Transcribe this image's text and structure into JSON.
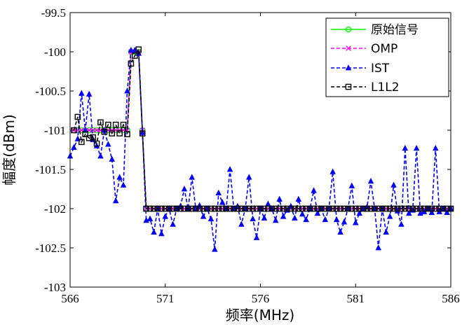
{
  "chart_data": {
    "type": "line",
    "title": "",
    "xlabel": "频率(MHz)",
    "ylabel": "幅度(dBm)",
    "xlim": [
      566,
      586
    ],
    "ylim": [
      -103,
      -99.5
    ],
    "xticks": [
      566,
      571,
      576,
      581,
      586
    ],
    "xtick_labels": [
      "566",
      "571",
      "576",
      "581",
      "586"
    ],
    "yticks": [
      -103,
      -102.5,
      -102,
      -101.5,
      -101,
      -100.5,
      -100,
      -99.5
    ],
    "ytick_labels": [
      "-103",
      "-102.5",
      "-102",
      "-101.5",
      "-101",
      "-100.5",
      "-100",
      "-99.5"
    ],
    "grid": false,
    "legend_position": "top-right",
    "series": [
      {
        "name": "原始信号",
        "color": "#00ff00",
        "marker": "circle",
        "dash": "solid",
        "x": [
          566.2,
          566.4,
          566.6,
          566.8,
          567.0,
          567.2,
          567.4,
          567.6,
          567.8,
          568.0,
          568.2,
          568.4,
          568.6,
          568.8,
          569.0,
          569.2,
          569.4,
          569.6,
          569.8,
          570.0,
          570.2,
          570.4,
          570.6,
          570.8,
          571.0,
          571.2,
          571.4,
          571.6,
          571.8,
          572.0,
          572.2,
          572.4,
          572.6,
          572.8,
          573.0,
          573.2,
          573.4,
          573.6,
          573.8,
          574.0,
          574.2,
          574.4,
          574.6,
          574.8,
          575.0,
          575.2,
          575.4,
          575.6,
          575.8,
          576.0,
          576.2,
          576.4,
          576.6,
          576.8,
          577.0,
          577.2,
          577.4,
          577.6,
          577.8,
          578.0,
          578.2,
          578.4,
          578.6,
          578.8,
          579.0,
          579.2,
          579.4,
          579.6,
          579.8,
          580.0,
          580.2,
          580.4,
          580.6,
          580.8,
          581.0,
          581.2,
          581.4,
          581.6,
          581.8,
          582.0,
          582.2,
          582.4,
          582.6,
          582.8,
          583.0,
          583.2,
          583.4,
          583.6,
          583.8,
          584.0,
          584.2,
          584.4,
          584.6,
          584.8,
          585.0,
          585.2,
          585.4,
          585.6,
          585.8,
          586.0
        ],
        "y": [
          -101,
          -101,
          -101,
          -101,
          -101,
          -101,
          -101,
          -101,
          -101,
          -101,
          -101,
          -101,
          -101,
          -101,
          -101,
          -100,
          -100,
          -100,
          -101,
          -102,
          -102,
          -102,
          -102,
          -102,
          -102,
          -102,
          -102,
          -102,
          -102,
          -102,
          -102,
          -102,
          -102,
          -102,
          -102,
          -102,
          -102,
          -102,
          -102,
          -102,
          -102,
          -102,
          -102,
          -102,
          -102,
          -102,
          -102,
          -102,
          -102,
          -102,
          -102,
          -102,
          -102,
          -102,
          -102,
          -102,
          -102,
          -102,
          -102,
          -102,
          -102,
          -102,
          -102,
          -102,
          -102,
          -102,
          -102,
          -102,
          -102,
          -102,
          -102,
          -102,
          -102,
          -102,
          -102,
          -102,
          -102,
          -102,
          -102,
          -102,
          -102,
          -102,
          -102,
          -102,
          -102,
          -102,
          -102,
          -102,
          -102,
          -102,
          -102,
          -102,
          -102,
          -102,
          -102,
          -102,
          -102,
          -102,
          -102,
          -102
        ]
      },
      {
        "name": "OMP",
        "color": "#ff00ff",
        "marker": "x",
        "dash": "dashed",
        "x": [
          566.2,
          566.4,
          566.6,
          566.8,
          567.0,
          567.2,
          567.4,
          567.6,
          567.8,
          568.0,
          568.2,
          568.4,
          568.6,
          568.8,
          569.0,
          569.2,
          569.4,
          569.6,
          569.8,
          570.0,
          570.2,
          570.4,
          570.6,
          570.8,
          571.0,
          571.2,
          571.4,
          571.6,
          571.8,
          572.0,
          572.2,
          572.4,
          572.6,
          572.8,
          573.0,
          573.2,
          573.4,
          573.6,
          573.8,
          574.0,
          574.2,
          574.4,
          574.6,
          574.8,
          575.0,
          575.2,
          575.4,
          575.6,
          575.8,
          576.0,
          576.2,
          576.4,
          576.6,
          576.8,
          577.0,
          577.2,
          577.4,
          577.6,
          577.8,
          578.0,
          578.2,
          578.4,
          578.6,
          578.8,
          579.0,
          579.2,
          579.4,
          579.6,
          579.8,
          580.0,
          580.2,
          580.4,
          580.6,
          580.8,
          581.0,
          581.2,
          581.4,
          581.6,
          581.8,
          582.0,
          582.2,
          582.4,
          582.6,
          582.8,
          583.0,
          583.2,
          583.4,
          583.6,
          583.8,
          584.0,
          584.2,
          584.4,
          584.6,
          584.8,
          585.0,
          585.2,
          585.4,
          585.6,
          585.8,
          586.0
        ],
        "y": [
          -101,
          -101,
          -101,
          -101,
          -101,
          -101,
          -101,
          -101,
          -101,
          -101,
          -101,
          -101,
          -101,
          -101,
          -101,
          -100,
          -100,
          -100,
          -101,
          -102,
          -102,
          -102,
          -102,
          -102,
          -102,
          -102,
          -102,
          -102,
          -102,
          -102,
          -102,
          -102,
          -102,
          -102,
          -102,
          -102,
          -102,
          -102,
          -102,
          -102,
          -102,
          -102,
          -102,
          -102,
          -102,
          -102,
          -102,
          -102,
          -102,
          -102,
          -102,
          -102,
          -102,
          -102,
          -102,
          -102,
          -102,
          -102,
          -102,
          -102,
          -102,
          -102,
          -102,
          -102,
          -102,
          -102,
          -102,
          -102,
          -102,
          -102,
          -102,
          -102,
          -102,
          -102,
          -102,
          -102,
          -102,
          -102,
          -102,
          -102,
          -102,
          -102,
          -102,
          -102,
          -102,
          -102,
          -102,
          -102,
          -102,
          -102,
          -102,
          -102,
          -102,
          -102,
          -102,
          -102,
          -102,
          -102,
          -102,
          -102
        ]
      },
      {
        "name": "IST",
        "color": "#0000ff",
        "marker": "triangle",
        "dash": "dashed",
        "x": [
          566.0,
          566.2,
          566.4,
          566.6,
          566.8,
          567.0,
          567.2,
          567.4,
          567.6,
          567.8,
          568.0,
          568.2,
          568.4,
          568.6,
          568.8,
          569.0,
          569.2,
          569.4,
          569.6,
          569.8,
          570.0,
          570.2,
          570.4,
          570.6,
          570.8,
          571.0,
          571.2,
          571.4,
          571.6,
          571.8,
          572.0,
          572.2,
          572.4,
          572.6,
          572.8,
          573.0,
          573.2,
          573.4,
          573.6,
          573.8,
          574.0,
          574.2,
          574.4,
          574.6,
          574.8,
          575.0,
          575.2,
          575.4,
          575.6,
          575.8,
          576.0,
          576.2,
          576.4,
          576.6,
          576.8,
          577.0,
          577.2,
          577.4,
          577.6,
          577.8,
          578.0,
          578.2,
          578.4,
          578.6,
          578.8,
          579.0,
          579.2,
          579.4,
          579.6,
          579.8,
          580.0,
          580.2,
          580.4,
          580.6,
          580.8,
          581.0,
          581.2,
          581.4,
          581.6,
          581.8,
          582.0,
          582.2,
          582.4,
          582.6,
          582.8,
          583.0,
          583.2,
          583.4,
          583.6,
          583.8,
          584.0,
          584.2,
          584.4,
          584.6,
          584.8,
          585.0,
          585.2,
          585.4,
          585.6,
          585.8,
          586.0
        ],
        "y": [
          -101.33,
          -101.22,
          -101.11,
          -100.53,
          -101.0,
          -100.54,
          -101.12,
          -101.2,
          -101.33,
          -101.0,
          -101.18,
          -101.37,
          -101.9,
          -101.6,
          -101.7,
          -100.5,
          -99.98,
          -99.98,
          -100.02,
          -101.03,
          -102.15,
          -102.13,
          -102.3,
          -102.0,
          -102.32,
          -102.1,
          -102.0,
          -102.2,
          -102.0,
          -101.97,
          -101.75,
          -102.0,
          -101.6,
          -102.0,
          -101.96,
          -102.1,
          -102.0,
          -102.13,
          -102.52,
          -101.8,
          -101.92,
          -102.0,
          -101.5,
          -102.0,
          -101.97,
          -102.2,
          -102.0,
          -101.6,
          -102.13,
          -102.37,
          -102.0,
          -102.12,
          -101.94,
          -102.0,
          -102.15,
          -101.88,
          -102.1,
          -102.02,
          -101.97,
          -102.12,
          -101.88,
          -102.07,
          -102.14,
          -102.0,
          -101.77,
          -102.06,
          -102.0,
          -102.14,
          -102.0,
          -101.53,
          -102.14,
          -102.3,
          -102.17,
          -102.0,
          -101.71,
          -102.18,
          -102.06,
          -102.0,
          -101.98,
          -101.65,
          -102.0,
          -102.5,
          -102.0,
          -102.3,
          -102.1,
          -101.7,
          -102.03,
          -102.2,
          -101.23,
          -102.06,
          -102.02,
          -101.23,
          -102.06,
          -102.04,
          -102.0,
          -102.05,
          -101.23,
          -102.04,
          -102.0,
          -102.05,
          -102.0
        ]
      },
      {
        "name": "L1L2",
        "color": "#000000",
        "marker": "square",
        "dash": "dashed",
        "x": [
          566.2,
          566.4,
          566.6,
          566.8,
          567.0,
          567.2,
          567.4,
          567.6,
          567.8,
          568.0,
          568.2,
          568.4,
          568.6,
          568.8,
          569.0,
          569.2,
          569.4,
          569.6,
          569.8,
          570.0,
          570.2,
          570.4,
          570.6,
          570.8,
          571.0,
          571.2,
          571.4,
          571.6,
          571.8,
          572.0,
          572.2,
          572.4,
          572.6,
          572.8,
          573.0,
          573.2,
          573.4,
          573.6,
          573.8,
          574.0,
          574.2,
          574.4,
          574.6,
          574.8,
          575.0,
          575.2,
          575.4,
          575.6,
          575.8,
          576.0,
          576.2,
          576.4,
          576.6,
          576.8,
          577.0,
          577.2,
          577.4,
          577.6,
          577.8,
          578.0,
          578.2,
          578.4,
          578.6,
          578.8,
          579.0,
          579.2,
          579.4,
          579.6,
          579.8,
          580.0,
          580.2,
          580.4,
          580.6,
          580.8,
          581.0,
          581.2,
          581.4,
          581.6,
          581.8,
          582.0,
          582.2,
          582.4,
          582.6,
          582.8,
          583.0,
          583.2,
          583.4,
          583.6,
          583.8,
          584.0,
          584.2,
          584.4,
          584.6,
          584.8,
          585.0,
          585.2,
          585.4,
          585.6,
          585.8,
          586.0
        ],
        "y": [
          -101.0,
          -100.83,
          -101.15,
          -101.05,
          -101.1,
          -101.09,
          -101.17,
          -100.9,
          -101.02,
          -100.93,
          -101.04,
          -100.93,
          -101.04,
          -100.93,
          -101.05,
          -100.15,
          -100.05,
          -99.97,
          -101.04,
          -102.0,
          -102.0,
          -102.0,
          -102.0,
          -102.0,
          -102.0,
          -102.0,
          -102.0,
          -102.0,
          -102.0,
          -102.0,
          -102.0,
          -102.0,
          -102.0,
          -102.0,
          -102.0,
          -102.0,
          -102.0,
          -102.0,
          -102.0,
          -102.0,
          -102.0,
          -102.0,
          -102.0,
          -102.0,
          -102.0,
          -102.0,
          -102.0,
          -102.0,
          -102.0,
          -102.0,
          -102.0,
          -102.0,
          -102.0,
          -102.0,
          -102.0,
          -102.0,
          -102.0,
          -102.0,
          -102.0,
          -102.0,
          -102.0,
          -102.0,
          -102.0,
          -102.0,
          -102.0,
          -102.0,
          -102.0,
          -102.0,
          -102.0,
          -102.0,
          -102.0,
          -102.0,
          -102.0,
          -102.0,
          -102.0,
          -102.0,
          -102.0,
          -102.0,
          -102.0,
          -102.0,
          -102.0,
          -102.0,
          -102.0,
          -102.0,
          -102.0,
          -102.0,
          -102.0,
          -102.0,
          -102.0,
          -102.0,
          -102.0,
          -102.0,
          -102.0,
          -102.0,
          -102.0,
          -102.0,
          -102.0,
          -102.0,
          -102.0,
          -102.0
        ]
      }
    ]
  }
}
